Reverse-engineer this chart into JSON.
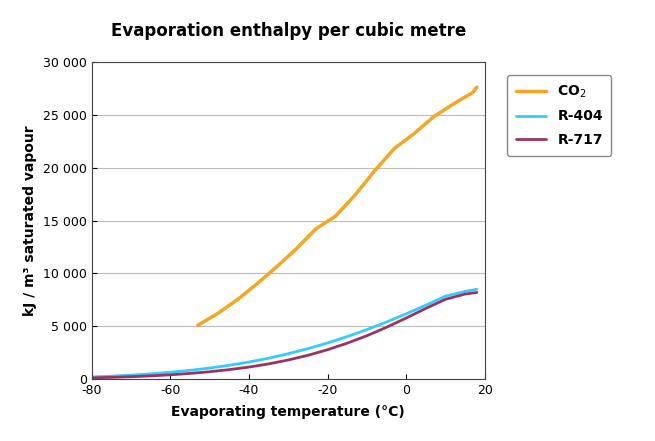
{
  "title": "Evaporation enthalpy per cubic metre",
  "xlabel": "Evaporating temperature (°C)",
  "ylabel": "kJ / m³ saturated vapour",
  "xlim": [
    -80,
    20
  ],
  "ylim": [
    0,
    30000
  ],
  "yticks": [
    0,
    5000,
    10000,
    15000,
    20000,
    25000,
    30000
  ],
  "ytick_labels": [
    "0",
    "5 000",
    "10 000",
    "15 000",
    "20 000",
    "25 000",
    "30 000"
  ],
  "xticks": [
    -80,
    -60,
    -40,
    -20,
    0,
    20
  ],
  "xtick_labels": [
    "-80",
    "-60",
    "-40",
    "-20",
    "0",
    "20"
  ],
  "CO2": {
    "x": [
      -53,
      -48,
      -43,
      -38,
      -33,
      -28,
      -23,
      -18,
      -13,
      -8,
      -3,
      2,
      7,
      12,
      17,
      18
    ],
    "y": [
      5100,
      6200,
      7500,
      9000,
      10600,
      12300,
      14200,
      15400,
      17400,
      19700,
      21800,
      23200,
      24800,
      26000,
      27100,
      27600
    ],
    "color": "#F5A623",
    "linewidth": 2.5,
    "label": "CO$_2$"
  },
  "R404": {
    "x": [
      -80,
      -75,
      -70,
      -65,
      -60,
      -55,
      -50,
      -45,
      -40,
      -35,
      -30,
      -25,
      -20,
      -15,
      -10,
      -5,
      0,
      5,
      10,
      15,
      18
    ],
    "y": [
      220,
      290,
      390,
      510,
      660,
      840,
      1060,
      1320,
      1630,
      1990,
      2410,
      2890,
      3430,
      4030,
      4690,
      5410,
      6180,
      6990,
      7850,
      8300,
      8500
    ],
    "color": "#33CCFF",
    "linewidth": 2.0,
    "label": "R-404"
  },
  "R717": {
    "x": [
      -80,
      -75,
      -70,
      -65,
      -60,
      -55,
      -50,
      -45,
      -40,
      -35,
      -30,
      -25,
      -20,
      -15,
      -10,
      -5,
      0,
      5,
      10,
      15,
      18
    ],
    "y": [
      130,
      180,
      240,
      320,
      420,
      550,
      710,
      910,
      1150,
      1450,
      1820,
      2260,
      2790,
      3410,
      4110,
      4910,
      5780,
      6690,
      7550,
      8050,
      8200
    ],
    "color": "#993366",
    "linewidth": 2.0,
    "label": "R-717"
  },
  "background_color": "#ffffff",
  "plot_background": "#ffffff",
  "grid_color": "#bbbbbb",
  "title_fontsize": 12,
  "axis_label_fontsize": 10,
  "tick_fontsize": 9,
  "legend_fontsize": 10
}
